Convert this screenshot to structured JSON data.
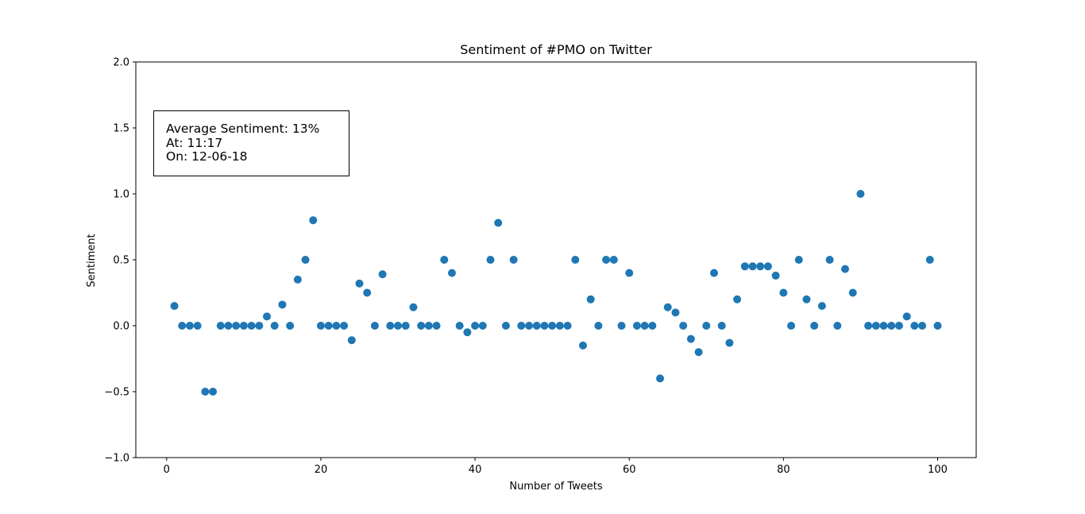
{
  "chart_data": {
    "type": "scatter",
    "title": "Sentiment of #PMO on Twitter",
    "xlabel": "Number of Tweets",
    "ylabel": "Sentiment",
    "xlim": [
      -4,
      105
    ],
    "ylim": [
      -1.0,
      2.0
    ],
    "xticks": [
      0,
      20,
      40,
      60,
      80,
      100
    ],
    "xtick_labels": [
      "0",
      "20",
      "40",
      "60",
      "80",
      "100"
    ],
    "yticks": [
      -1.0,
      -0.5,
      0.0,
      0.5,
      1.0,
      1.5,
      2.0
    ],
    "ytick_labels": [
      "−1.0",
      "−0.5",
      "0.0",
      "0.5",
      "1.0",
      "1.5",
      "2.0"
    ],
    "grid": false,
    "marker_color": "#1f77b4",
    "annotation": {
      "lines": [
        "Average Sentiment:  13%",
        "At: 11:17",
        "On: 12-06-18"
      ]
    },
    "x": [
      1,
      2,
      3,
      4,
      5,
      6,
      7,
      8,
      9,
      10,
      11,
      12,
      13,
      14,
      15,
      16,
      17,
      18,
      19,
      20,
      21,
      22,
      23,
      24,
      25,
      26,
      27,
      28,
      29,
      30,
      31,
      32,
      33,
      34,
      35,
      36,
      37,
      38,
      39,
      40,
      41,
      42,
      43,
      44,
      45,
      46,
      47,
      48,
      49,
      50,
      51,
      52,
      53,
      54,
      55,
      56,
      57,
      58,
      59,
      60,
      61,
      62,
      63,
      64,
      65,
      66,
      67,
      68,
      69,
      70,
      71,
      72,
      73,
      74,
      75,
      76,
      77,
      78,
      79,
      80,
      81,
      82,
      83,
      84,
      85,
      86,
      87,
      88,
      89,
      90,
      91,
      92,
      93,
      94,
      95,
      96,
      97,
      98,
      99,
      100
    ],
    "y": [
      0.15,
      0,
      0,
      0,
      -0.5,
      -0.5,
      0,
      0,
      0,
      0,
      0,
      0,
      0.07,
      0,
      0.16,
      0,
      0.35,
      0.5,
      0.8,
      0,
      0,
      0,
      0,
      -0.11,
      0.32,
      0.25,
      0,
      0.39,
      0,
      0,
      0,
      0.14,
      0,
      0,
      0,
      0.5,
      0.4,
      0,
      -0.05,
      0,
      0,
      0.5,
      0.78,
      0,
      0.5,
      0,
      0,
      0,
      0,
      0,
      0,
      0,
      0.5,
      -0.15,
      0.2,
      0,
      0.5,
      0.5,
      0,
      0.4,
      0,
      0,
      0,
      -0.4,
      0.14,
      0.1,
      0,
      -0.1,
      -0.2,
      0,
      0.4,
      0,
      -0.13,
      0.2,
      0.45,
      0.45,
      0.45,
      0.45,
      0.38,
      0.25,
      0,
      0.5,
      0.2,
      0,
      0.15,
      0.5,
      0,
      0.43,
      0.25,
      1.0,
      0,
      0,
      0,
      0,
      0,
      0.07,
      0,
      0,
      0.5,
      0
    ]
  }
}
